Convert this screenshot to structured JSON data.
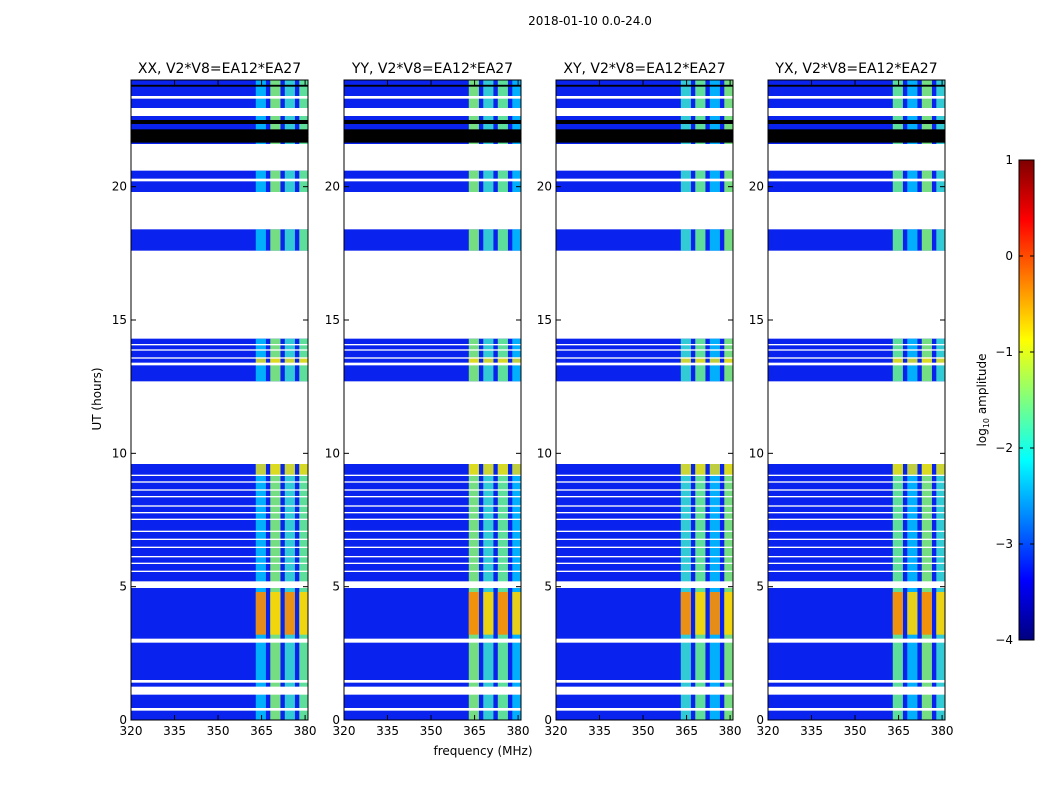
{
  "figure": {
    "suptitle": "2018-01-10 0.0-24.0"
  },
  "chart_data": {
    "type": "heatmap",
    "title": "2018-01-10 0.0-24.0",
    "xlabel": "frequency (MHz)",
    "ylabel": "UT (hours)",
    "xlim": [
      320,
      381
    ],
    "ylim": [
      0,
      24
    ],
    "xticks": [
      "320",
      "335",
      "350",
      "365",
      "380"
    ],
    "yticks": [
      "0",
      "5",
      "10",
      "15",
      "20"
    ],
    "colorbar": {
      "label_prefix": "log",
      "label_sub": "10",
      "label_suffix": " amplitude",
      "range": [
        -4,
        1
      ],
      "ticks": [
        "−4",
        "−3",
        "−2",
        "−1",
        "0",
        "1"
      ],
      "colormap": [
        "#00007f",
        "#0000ff",
        "#007fff",
        "#00ffff",
        "#7fff7f",
        "#ffff00",
        "#ff7f00",
        "#ff0000",
        "#7f0000"
      ]
    },
    "panels": [
      {
        "title": "XX, V2*V8=EA12*EA27"
      },
      {
        "title": "YY, V2*V8=EA12*EA27"
      },
      {
        "title": "XY, V2*V8=EA12*EA27"
      },
      {
        "title": "YX, V2*V8=EA12*EA27"
      }
    ],
    "rfi_channels_mhz": [
      [
        363,
        366.5
      ],
      [
        368,
        371.5
      ],
      [
        373,
        376.5
      ],
      [
        378,
        381
      ]
    ],
    "data_segments_ut": [
      [
        0,
        9.6
      ],
      [
        12.7,
        14.3
      ],
      [
        17.6,
        18.4
      ],
      [
        19.8,
        20.6
      ],
      [
        21.6,
        24
      ]
    ],
    "flagged_white_ut": [
      [
        0.35,
        0.45
      ],
      [
        0.95,
        1.25
      ],
      [
        1.4,
        1.5
      ],
      [
        2.9,
        3.05
      ],
      [
        4.95,
        5.2
      ],
      [
        5.55,
        5.6
      ],
      [
        5.85,
        5.9
      ],
      [
        6.1,
        6.15
      ],
      [
        6.45,
        6.5
      ],
      [
        6.75,
        6.8
      ],
      [
        7.05,
        7.1
      ],
      [
        7.5,
        7.55
      ],
      [
        7.75,
        7.8
      ],
      [
        8.0,
        8.05
      ],
      [
        8.35,
        8.4
      ],
      [
        8.6,
        8.65
      ],
      [
        8.9,
        8.95
      ],
      [
        9.15,
        9.2
      ],
      [
        13.3,
        13.4
      ],
      [
        13.55,
        13.6
      ],
      [
        13.85,
        13.9
      ],
      [
        14.05,
        14.1
      ],
      [
        20.2,
        20.3
      ],
      [
        22.65,
        22.95
      ],
      [
        23.3,
        23.4
      ]
    ],
    "flagged_black_ut": [
      [
        21.65,
        22.15
      ],
      [
        22.35,
        22.5
      ],
      [
        23.75,
        23.82
      ]
    ],
    "high_amplitude_ut": [
      [
        3.2,
        4.8
      ],
      [
        13.3,
        13.6
      ],
      [
        9.2,
        9.6
      ]
    ]
  }
}
